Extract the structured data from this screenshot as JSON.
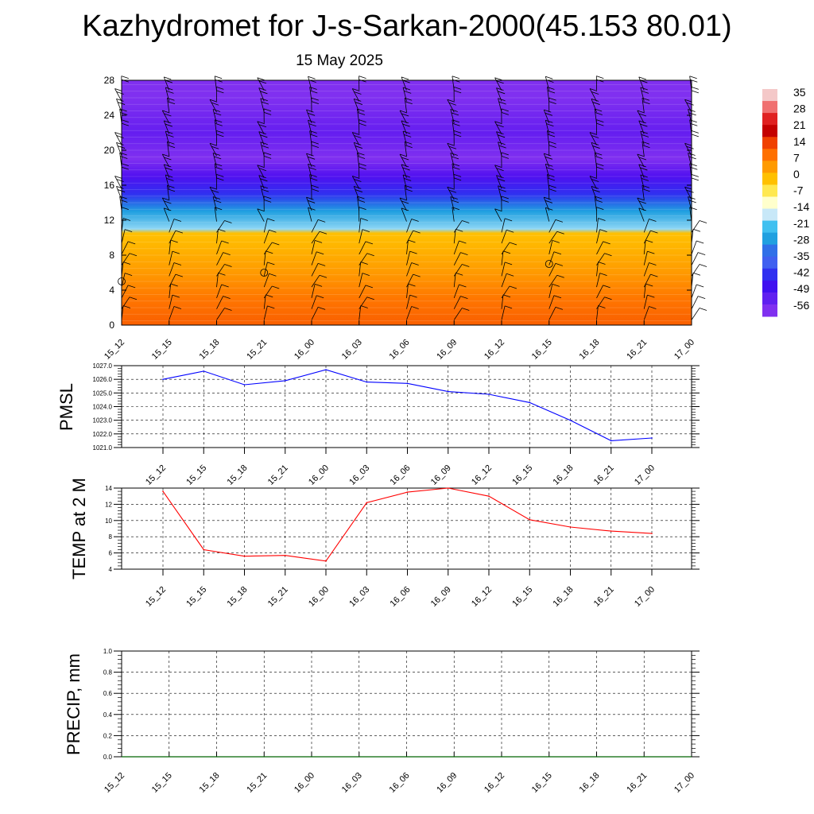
{
  "header": {
    "title": "Kazhydromet for J-s-Sarkan-2000(45.153 80.01)",
    "date": "15 May 2025"
  },
  "colorbar": {
    "labels": [
      "35",
      "28",
      "21",
      "14",
      "7",
      "0",
      "-7",
      "-14",
      "-21",
      "-28",
      "-35",
      "-42",
      "-49",
      "-56"
    ],
    "colors": [
      "#f4c8c8",
      "#f07070",
      "#e02020",
      "#c40000",
      "#f04000",
      "#ff7000",
      "#ff9a00",
      "#ffc000",
      "#ffe850",
      "#ffffcc",
      "#c8e8f8",
      "#40c0f0",
      "#20a0e0",
      "#3070e8",
      "#4060f0",
      "#3030f0",
      "#4010f0",
      "#6020f0",
      "#8030f0"
    ]
  },
  "chart_data": [
    {
      "type": "heatmap",
      "ylabel": "",
      "ylim": [
        0,
        28
      ],
      "yticks": [
        "0",
        "4",
        "8",
        "12",
        "16",
        "20",
        "24",
        "28"
      ],
      "x": [
        "15_12",
        "15_15",
        "15_18",
        "15_21",
        "16_00",
        "16_03",
        "16_06",
        "16_09",
        "16_12",
        "16_15",
        "16_18",
        "16_21",
        "17_00"
      ],
      "value_profile": [
        {
          "y": 0,
          "value": 17
        },
        {
          "y": 3,
          "value": 13
        },
        {
          "y": 6,
          "value": 7
        },
        {
          "y": 9,
          "value": 2
        },
        {
          "y": 10.5,
          "value": 0
        },
        {
          "y": 11,
          "value": -17
        },
        {
          "y": 13,
          "value": -28
        },
        {
          "y": 15,
          "value": -42
        },
        {
          "y": 17,
          "value": -49
        },
        {
          "y": 19,
          "value": -56
        },
        {
          "y": 22,
          "value": -52
        },
        {
          "y": 26,
          "value": -56
        },
        {
          "y": 28,
          "value": -56
        }
      ],
      "overlay": "wind barbs"
    },
    {
      "type": "line",
      "ylabel": "PMSL",
      "ylim": [
        1021.0,
        1027.0
      ],
      "yticks": [
        "1021.0",
        "1022.0",
        "1023.0",
        "1024.0",
        "1025.0",
        "1026.0",
        "1027.0"
      ],
      "x": [
        "15_12",
        "15_15",
        "15_18",
        "15_21",
        "16_00",
        "16_03",
        "16_06",
        "16_09",
        "16_12",
        "16_15",
        "16_18",
        "16_21",
        "17_00"
      ],
      "values": [
        1026.0,
        1026.6,
        1025.6,
        1025.9,
        1026.7,
        1025.8,
        1025.7,
        1025.1,
        1024.9,
        1024.3,
        1023.0,
        1021.5,
        1021.7
      ],
      "color": "#0000ff",
      "grid": true
    },
    {
      "type": "line",
      "ylabel": "TEMP at 2 M",
      "ylim": [
        4,
        14
      ],
      "yticks": [
        "4",
        "6",
        "8",
        "10",
        "12",
        "14"
      ],
      "x": [
        "15_12",
        "15_15",
        "15_18",
        "15_21",
        "16_00",
        "16_03",
        "16_06",
        "16_09",
        "16_12",
        "16_15",
        "16_18",
        "16_21",
        "17_00"
      ],
      "values": [
        13.6,
        6.4,
        5.6,
        5.7,
        5.0,
        12.2,
        13.5,
        14.0,
        13.0,
        10.1,
        9.2,
        8.7,
        8.4
      ],
      "color": "#ff0000",
      "grid": true
    },
    {
      "type": "line",
      "ylabel": "PRECIP, mm",
      "ylim": [
        0.0,
        1.0
      ],
      "yticks": [
        "0.0",
        "0.2",
        "0.4",
        "0.6",
        "0.8",
        "1.0"
      ],
      "x": [
        "15_12",
        "15_15",
        "15_18",
        "15_21",
        "16_00",
        "16_03",
        "16_06",
        "16_09",
        "16_12",
        "16_15",
        "16_18",
        "16_21",
        "17_00"
      ],
      "values": [
        0,
        0,
        0,
        0,
        0,
        0,
        0,
        0,
        0,
        0,
        0,
        0,
        0
      ],
      "color": "#006400",
      "grid": true
    }
  ]
}
